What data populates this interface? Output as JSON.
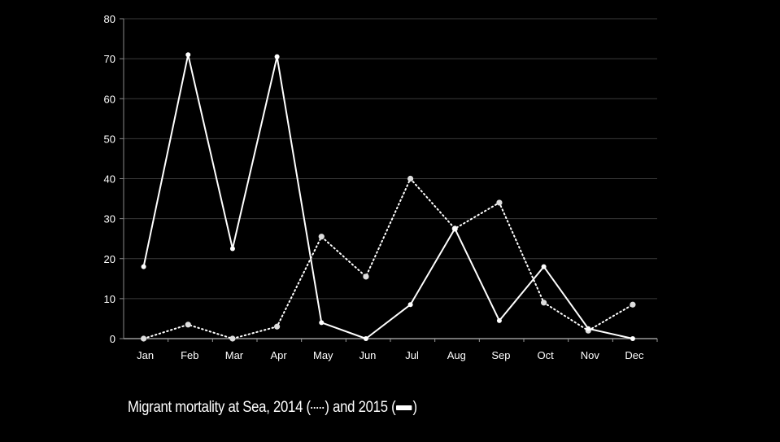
{
  "chart_data": {
    "type": "line",
    "title": "",
    "caption": {
      "text_before": "Migrant mortality at Sea, 2014 (",
      "text_middle": ") and 2015 (",
      "text_after": ")"
    },
    "categories": [
      "Jan",
      "Feb",
      "Mar",
      "Apr",
      "May",
      "Jun",
      "Jul",
      "Aug",
      "Sep",
      "Oct",
      "Nov",
      "Dec"
    ],
    "ylim": [
      0,
      80
    ],
    "yticks": [
      0,
      10,
      20,
      30,
      40,
      50,
      60,
      70,
      80
    ],
    "grid": true,
    "series": [
      {
        "name": "2014",
        "style": "dotted",
        "color": "#ffffff",
        "values": [
          0,
          3.5,
          0,
          3,
          25.5,
          15.5,
          40,
          27.5,
          34,
          9,
          2,
          8.5
        ]
      },
      {
        "name": "2015",
        "style": "solid",
        "color": "#ffffff",
        "values": [
          18,
          71,
          22.5,
          70.5,
          4,
          0,
          8.5,
          27.5,
          4.5,
          18,
          2.5,
          0
        ]
      }
    ],
    "legend": "caption-inline"
  }
}
